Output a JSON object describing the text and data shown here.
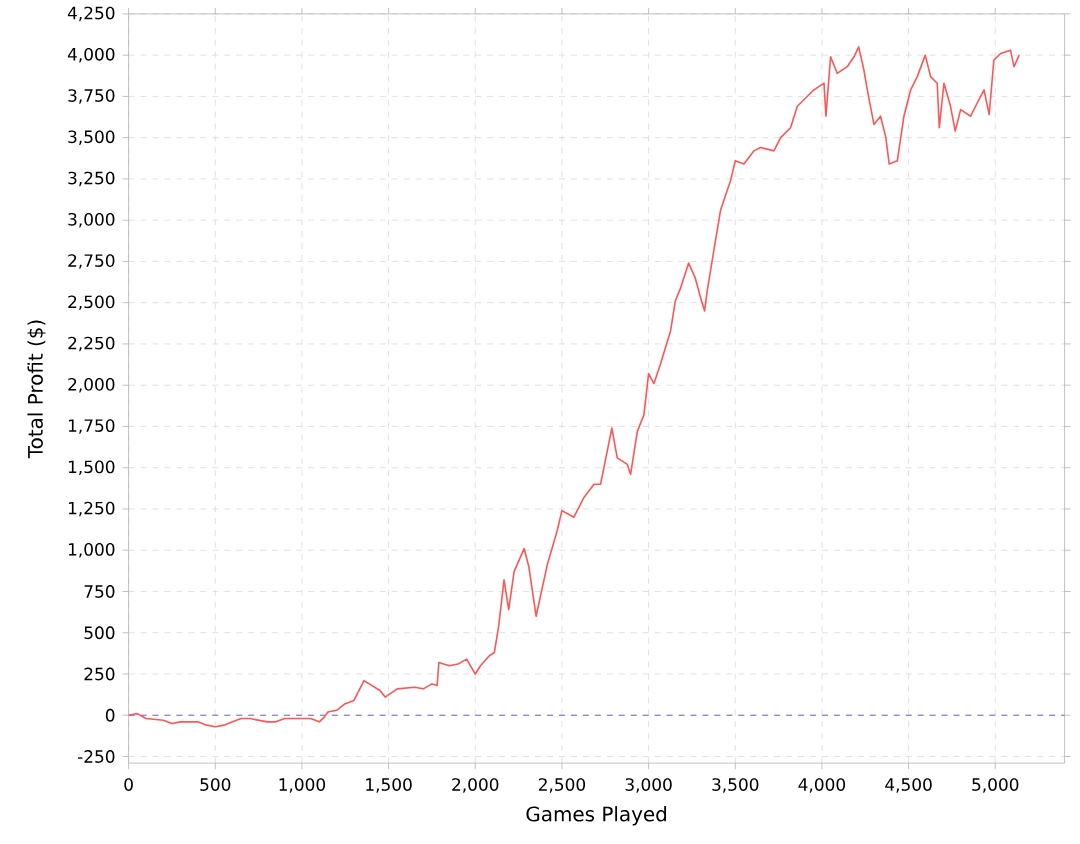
{
  "chart_data": {
    "type": "line",
    "xlabel": "Games Played",
    "ylabel": "Total Profit ($)",
    "xlim": [
      0,
      5400
    ],
    "ylim": [
      -290,
      4250
    ],
    "xticks": [
      0,
      500,
      {
        "value": 1000,
        "label": "1,000"
      },
      {
        "value": 1500,
        "label": "1,500"
      },
      {
        "value": 2000,
        "label": "2,000"
      },
      {
        "value": 2500,
        "label": "2,500"
      },
      {
        "value": 3000,
        "label": "3,000"
      },
      {
        "value": 3500,
        "label": "3,500"
      },
      {
        "value": 4000,
        "label": "4,000"
      },
      {
        "value": 4500,
        "label": "4,500"
      },
      {
        "value": 5000,
        "label": "5,000"
      }
    ],
    "yticks": [
      -250,
      0,
      250,
      500,
      750,
      {
        "value": 1000,
        "label": "1,000"
      },
      {
        "value": 1250,
        "label": "1,250"
      },
      {
        "value": 1500,
        "label": "1,500"
      },
      {
        "value": 1750,
        "label": "1,750"
      },
      {
        "value": 2000,
        "label": "2,000"
      },
      {
        "value": 2250,
        "label": "2,250"
      },
      {
        "value": 2500,
        "label": "2,500"
      },
      {
        "value": 2750,
        "label": "2,750"
      },
      {
        "value": 3000,
        "label": "3,000"
      },
      {
        "value": 3250,
        "label": "3,250"
      },
      {
        "value": 3500,
        "label": "3,500"
      },
      {
        "value": 3750,
        "label": "3,750"
      },
      {
        "value": 4000,
        "label": "4,000"
      },
      {
        "value": 4250,
        "label": "4,250"
      }
    ],
    "grid": true,
    "marker": "none",
    "line_style": "solid",
    "ref_lines": [
      {
        "axis": "y",
        "value": 0,
        "color": "#6666ee",
        "line_style": "dashed"
      }
    ],
    "series": [
      {
        "color": "#ff5555",
        "x": [
          0,
          50,
          100,
          200,
          250,
          300,
          400,
          450,
          500,
          550,
          600,
          650,
          700,
          800,
          850,
          900,
          1000,
          1050,
          1100,
          1130,
          1150,
          1200,
          1250,
          1300,
          1358,
          1450,
          1480,
          1550,
          1650,
          1700,
          1750,
          1780,
          1790,
          1850,
          1900,
          1950,
          2000,
          2030,
          2081,
          2110,
          2135,
          2166,
          2193,
          2224,
          2282,
          2309,
          2351,
          2415,
          2473,
          2500,
          2569,
          2627,
          2685,
          2723,
          2788,
          2819,
          2877,
          2896,
          2935,
          2973,
          3000,
          3031,
          3069,
          3127,
          3154,
          3185,
          3231,
          3269,
          3300,
          3323,
          3338,
          3377,
          3415,
          3473,
          3500,
          3550,
          3608,
          3646,
          3723,
          3762,
          3819,
          3858,
          3954,
          4012,
          4023,
          4050,
          4088,
          4146,
          4185,
          4212,
          4242,
          4262,
          4300,
          4338,
          4369,
          4388,
          4435,
          4473,
          4512,
          4550,
          4596,
          4627,
          4665,
          4677,
          4704,
          4742,
          4769,
          4800,
          4858,
          4896,
          4935,
          4965,
          4992,
          5031,
          5088,
          5108,
          5138
        ],
        "values": [
          0,
          10,
          -20,
          -30,
          -50,
          -40,
          -40,
          -60,
          -70,
          -60,
          -40,
          -20,
          -20,
          -40,
          -40,
          -20,
          -20,
          -20,
          -40,
          -10,
          20,
          30,
          70,
          90,
          210,
          150,
          110,
          160,
          170,
          160,
          190,
          180,
          320,
          300,
          310,
          340,
          250,
          300,
          360,
          380,
          540,
          820,
          640,
          870,
          1010,
          900,
          600,
          910,
          1120,
          1240,
          1200,
          1320,
          1400,
          1400,
          1740,
          1560,
          1520,
          1460,
          1720,
          1820,
          2070,
          2010,
          2130,
          2330,
          2510,
          2590,
          2740,
          2650,
          2530,
          2450,
          2570,
          2820,
          3060,
          3240,
          3360,
          3340,
          3420,
          3440,
          3420,
          3500,
          3560,
          3690,
          3790,
          3830,
          3630,
          3990,
          3890,
          3930,
          3990,
          4050,
          3910,
          3790,
          3580,
          3630,
          3500,
          3340,
          3360,
          3630,
          3790,
          3870,
          4000,
          3870,
          3830,
          3560,
          3830,
          3690,
          3540,
          3670,
          3630,
          3710,
          3790,
          3640,
          3970,
          4010,
          4030,
          3930,
          4000
        ]
      }
    ]
  }
}
